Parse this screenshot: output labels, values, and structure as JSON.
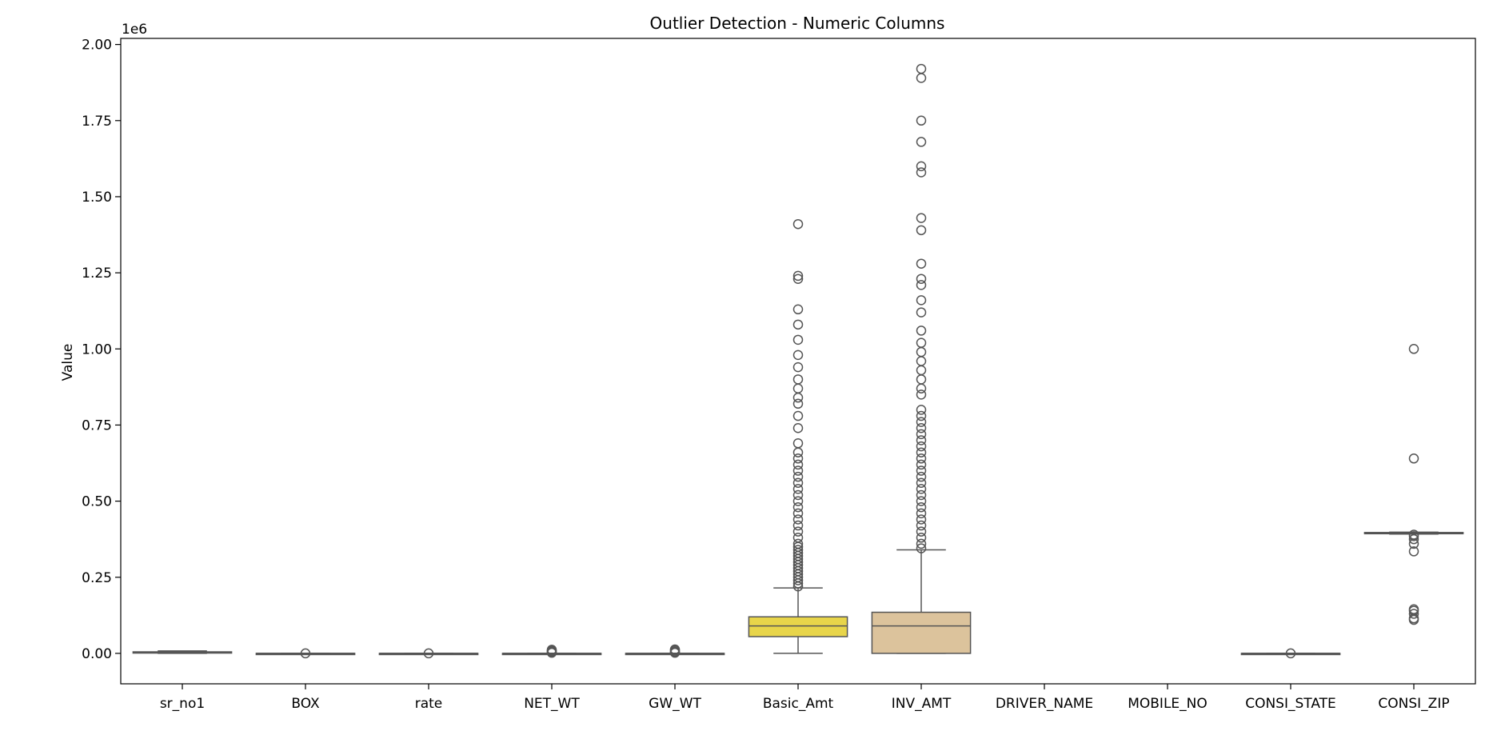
{
  "chart_data": {
    "type": "box",
    "title": "Outlier Detection - Numeric Columns",
    "xlabel": "",
    "ylabel": "Value",
    "scale_note": "1e6",
    "ylim": [
      -0.1,
      2.02
    ],
    "yticks": [
      0.0,
      0.25,
      0.5,
      0.75,
      1.0,
      1.25,
      1.5,
      1.75,
      2.0
    ],
    "ytick_labels": [
      "0.00",
      "0.25",
      "0.50",
      "0.75",
      "1.00",
      "1.25",
      "1.50",
      "1.75",
      "2.00"
    ],
    "grid": false,
    "legend": "none",
    "categories": [
      "sr_no1",
      "BOX",
      "rate",
      "NET_WT",
      "GW_WT",
      "Basic_Amt",
      "INV_AMT",
      "DRIVER_NAME",
      "MOBILE_NO",
      "CONSI_STATE",
      "CONSI_ZIP"
    ],
    "boxes": [
      {
        "name": "sr_no1",
        "color": "#c9c9c9",
        "whislo": 0.0,
        "q1": 0.001,
        "median": 0.003,
        "q3": 0.005,
        "whishi": 0.008,
        "fliers": []
      },
      {
        "name": "BOX",
        "color": "#cfe7c7",
        "whislo": 0.0,
        "q1": 0.0,
        "median": 0.0,
        "q3": 0.0,
        "whishi": 0.0,
        "fliers": [
          0.0
        ]
      },
      {
        "name": "rate",
        "color": "#d6cfe6",
        "whislo": 0.0,
        "q1": 0.0,
        "median": 0.0,
        "q3": 0.0,
        "whishi": 0.0,
        "fliers": [
          0.0
        ]
      },
      {
        "name": "NET_WT",
        "color": "#b7d9e8",
        "whislo": 0.0,
        "q1": 0.0,
        "median": 0.0,
        "q3": 0.0,
        "whishi": 0.0,
        "fliers": [
          0.003,
          0.006,
          0.009,
          0.012,
          0.002
        ]
      },
      {
        "name": "GW_WT",
        "color": "#c8dbc6",
        "whislo": 0.0,
        "q1": 0.0,
        "median": 0.0,
        "q3": 0.0,
        "whishi": 0.0,
        "fliers": [
          0.003,
          0.006,
          0.01,
          0.013,
          0.002
        ]
      },
      {
        "name": "Basic_Amt",
        "color": "#e8d54a",
        "whislo": 0.0,
        "q1": 0.055,
        "median": 0.09,
        "q3": 0.12,
        "whishi": 0.215,
        "fliers": [
          0.22,
          0.23,
          0.24,
          0.25,
          0.26,
          0.27,
          0.28,
          0.29,
          0.3,
          0.31,
          0.32,
          0.33,
          0.34,
          0.35,
          0.36,
          0.38,
          0.4,
          0.42,
          0.44,
          0.46,
          0.48,
          0.5,
          0.52,
          0.54,
          0.56,
          0.58,
          0.6,
          0.62,
          0.64,
          0.66,
          0.69,
          0.74,
          0.78,
          0.82,
          0.84,
          0.87,
          0.9,
          0.94,
          0.98,
          1.03,
          1.08,
          1.13,
          1.23,
          1.24,
          1.41
        ]
      },
      {
        "name": "INV_AMT",
        "color": "#dcc39c",
        "whislo": 0.0,
        "q1": 0.0,
        "median": 0.09,
        "q3": 0.135,
        "whishi": 0.34,
        "fliers": [
          0.345,
          0.36,
          0.38,
          0.4,
          0.42,
          0.44,
          0.46,
          0.48,
          0.5,
          0.52,
          0.54,
          0.56,
          0.58,
          0.6,
          0.62,
          0.64,
          0.66,
          0.68,
          0.7,
          0.72,
          0.74,
          0.76,
          0.78,
          0.8,
          0.85,
          0.87,
          0.9,
          0.93,
          0.96,
          0.99,
          1.02,
          1.06,
          1.12,
          1.16,
          1.21,
          1.23,
          1.28,
          1.39,
          1.43,
          1.58,
          1.6,
          1.68,
          1.75,
          1.89,
          1.92
        ]
      },
      {
        "name": "DRIVER_NAME",
        "color": "#ffffff",
        "empty": true
      },
      {
        "name": "MOBILE_NO",
        "color": "#ffffff",
        "empty": true
      },
      {
        "name": "CONSI_STATE",
        "color": "#dfe4ec",
        "whislo": 0.0,
        "q1": 0.0,
        "median": 0.0,
        "q3": 0.0,
        "whishi": 0.0,
        "fliers": [
          0.0
        ]
      },
      {
        "name": "CONSI_ZIP",
        "color": "#eeeeee",
        "whislo": 0.392,
        "q1": 0.394,
        "median": 0.395,
        "q3": 0.397,
        "whishi": 0.398,
        "fliers": [
          0.11,
          0.115,
          0.13,
          0.14,
          0.145,
          0.335,
          0.36,
          0.375,
          0.385,
          0.39,
          0.64,
          1.0
        ]
      }
    ]
  }
}
